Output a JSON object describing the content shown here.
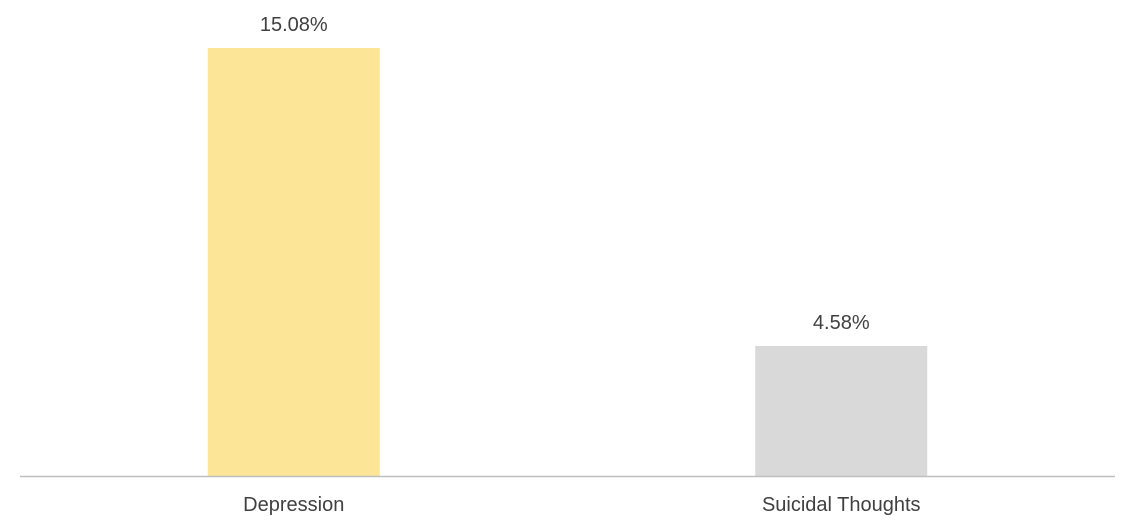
{
  "chart_data": {
    "type": "bar",
    "categories": [
      "Depression",
      "Suicidal Thoughts"
    ],
    "values": [
      15.08,
      4.58
    ],
    "data_labels": [
      "15.08%",
      "4.58%"
    ],
    "unit": "%",
    "ylim": [
      0,
      15.08
    ],
    "grid": false,
    "legend": "none",
    "colors": [
      "#fce597",
      "#d9d9d9"
    ],
    "axis_color": "#bfbfbf",
    "text_color": "#404040"
  }
}
